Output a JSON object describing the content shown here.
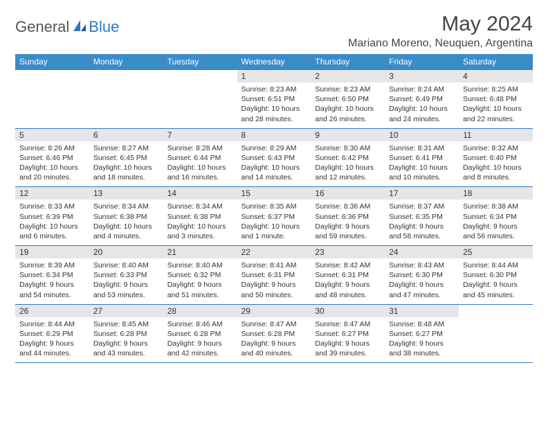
{
  "brand": {
    "general": "General",
    "blue": "Blue"
  },
  "title": "May 2024",
  "location": "Mariano Moreno, Neuquen, Argentina",
  "colors": {
    "header_bg": "#3b8bc9",
    "header_text": "#ffffff",
    "border": "#2f7abf",
    "daynum_bg": "#e6e6e6",
    "text": "#333333",
    "brand_blue": "#2f7abf",
    "brand_gray": "#555555",
    "background": "#ffffff"
  },
  "day_headers": [
    "Sunday",
    "Monday",
    "Tuesday",
    "Wednesday",
    "Thursday",
    "Friday",
    "Saturday"
  ],
  "weeks": [
    [
      {
        "num": "",
        "lines": []
      },
      {
        "num": "",
        "lines": []
      },
      {
        "num": "",
        "lines": []
      },
      {
        "num": "1",
        "lines": [
          "Sunrise: 8:23 AM",
          "Sunset: 6:51 PM",
          "Daylight: 10 hours",
          "and 28 minutes."
        ]
      },
      {
        "num": "2",
        "lines": [
          "Sunrise: 8:23 AM",
          "Sunset: 6:50 PM",
          "Daylight: 10 hours",
          "and 26 minutes."
        ]
      },
      {
        "num": "3",
        "lines": [
          "Sunrise: 8:24 AM",
          "Sunset: 6:49 PM",
          "Daylight: 10 hours",
          "and 24 minutes."
        ]
      },
      {
        "num": "4",
        "lines": [
          "Sunrise: 8:25 AM",
          "Sunset: 6:48 PM",
          "Daylight: 10 hours",
          "and 22 minutes."
        ]
      }
    ],
    [
      {
        "num": "5",
        "lines": [
          "Sunrise: 8:26 AM",
          "Sunset: 6:46 PM",
          "Daylight: 10 hours",
          "and 20 minutes."
        ]
      },
      {
        "num": "6",
        "lines": [
          "Sunrise: 8:27 AM",
          "Sunset: 6:45 PM",
          "Daylight: 10 hours",
          "and 18 minutes."
        ]
      },
      {
        "num": "7",
        "lines": [
          "Sunrise: 8:28 AM",
          "Sunset: 6:44 PM",
          "Daylight: 10 hours",
          "and 16 minutes."
        ]
      },
      {
        "num": "8",
        "lines": [
          "Sunrise: 8:29 AM",
          "Sunset: 6:43 PM",
          "Daylight: 10 hours",
          "and 14 minutes."
        ]
      },
      {
        "num": "9",
        "lines": [
          "Sunrise: 8:30 AM",
          "Sunset: 6:42 PM",
          "Daylight: 10 hours",
          "and 12 minutes."
        ]
      },
      {
        "num": "10",
        "lines": [
          "Sunrise: 8:31 AM",
          "Sunset: 6:41 PM",
          "Daylight: 10 hours",
          "and 10 minutes."
        ]
      },
      {
        "num": "11",
        "lines": [
          "Sunrise: 8:32 AM",
          "Sunset: 6:40 PM",
          "Daylight: 10 hours",
          "and 8 minutes."
        ]
      }
    ],
    [
      {
        "num": "12",
        "lines": [
          "Sunrise: 8:33 AM",
          "Sunset: 6:39 PM",
          "Daylight: 10 hours",
          "and 6 minutes."
        ]
      },
      {
        "num": "13",
        "lines": [
          "Sunrise: 8:34 AM",
          "Sunset: 6:38 PM",
          "Daylight: 10 hours",
          "and 4 minutes."
        ]
      },
      {
        "num": "14",
        "lines": [
          "Sunrise: 8:34 AM",
          "Sunset: 6:38 PM",
          "Daylight: 10 hours",
          "and 3 minutes."
        ]
      },
      {
        "num": "15",
        "lines": [
          "Sunrise: 8:35 AM",
          "Sunset: 6:37 PM",
          "Daylight: 10 hours",
          "and 1 minute."
        ]
      },
      {
        "num": "16",
        "lines": [
          "Sunrise: 8:36 AM",
          "Sunset: 6:36 PM",
          "Daylight: 9 hours",
          "and 59 minutes."
        ]
      },
      {
        "num": "17",
        "lines": [
          "Sunrise: 8:37 AM",
          "Sunset: 6:35 PM",
          "Daylight: 9 hours",
          "and 58 minutes."
        ]
      },
      {
        "num": "18",
        "lines": [
          "Sunrise: 8:38 AM",
          "Sunset: 6:34 PM",
          "Daylight: 9 hours",
          "and 56 minutes."
        ]
      }
    ],
    [
      {
        "num": "19",
        "lines": [
          "Sunrise: 8:39 AM",
          "Sunset: 6:34 PM",
          "Daylight: 9 hours",
          "and 54 minutes."
        ]
      },
      {
        "num": "20",
        "lines": [
          "Sunrise: 8:40 AM",
          "Sunset: 6:33 PM",
          "Daylight: 9 hours",
          "and 53 minutes."
        ]
      },
      {
        "num": "21",
        "lines": [
          "Sunrise: 8:40 AM",
          "Sunset: 6:32 PM",
          "Daylight: 9 hours",
          "and 51 minutes."
        ]
      },
      {
        "num": "22",
        "lines": [
          "Sunrise: 8:41 AM",
          "Sunset: 6:31 PM",
          "Daylight: 9 hours",
          "and 50 minutes."
        ]
      },
      {
        "num": "23",
        "lines": [
          "Sunrise: 8:42 AM",
          "Sunset: 6:31 PM",
          "Daylight: 9 hours",
          "and 48 minutes."
        ]
      },
      {
        "num": "24",
        "lines": [
          "Sunrise: 8:43 AM",
          "Sunset: 6:30 PM",
          "Daylight: 9 hours",
          "and 47 minutes."
        ]
      },
      {
        "num": "25",
        "lines": [
          "Sunrise: 8:44 AM",
          "Sunset: 6:30 PM",
          "Daylight: 9 hours",
          "and 45 minutes."
        ]
      }
    ],
    [
      {
        "num": "26",
        "lines": [
          "Sunrise: 8:44 AM",
          "Sunset: 6:29 PM",
          "Daylight: 9 hours",
          "and 44 minutes."
        ]
      },
      {
        "num": "27",
        "lines": [
          "Sunrise: 8:45 AM",
          "Sunset: 6:28 PM",
          "Daylight: 9 hours",
          "and 43 minutes."
        ]
      },
      {
        "num": "28",
        "lines": [
          "Sunrise: 8:46 AM",
          "Sunset: 6:28 PM",
          "Daylight: 9 hours",
          "and 42 minutes."
        ]
      },
      {
        "num": "29",
        "lines": [
          "Sunrise: 8:47 AM",
          "Sunset: 6:28 PM",
          "Daylight: 9 hours",
          "and 40 minutes."
        ]
      },
      {
        "num": "30",
        "lines": [
          "Sunrise: 8:47 AM",
          "Sunset: 6:27 PM",
          "Daylight: 9 hours",
          "and 39 minutes."
        ]
      },
      {
        "num": "31",
        "lines": [
          "Sunrise: 8:48 AM",
          "Sunset: 6:27 PM",
          "Daylight: 9 hours",
          "and 38 minutes."
        ]
      },
      {
        "num": "",
        "lines": []
      }
    ]
  ]
}
